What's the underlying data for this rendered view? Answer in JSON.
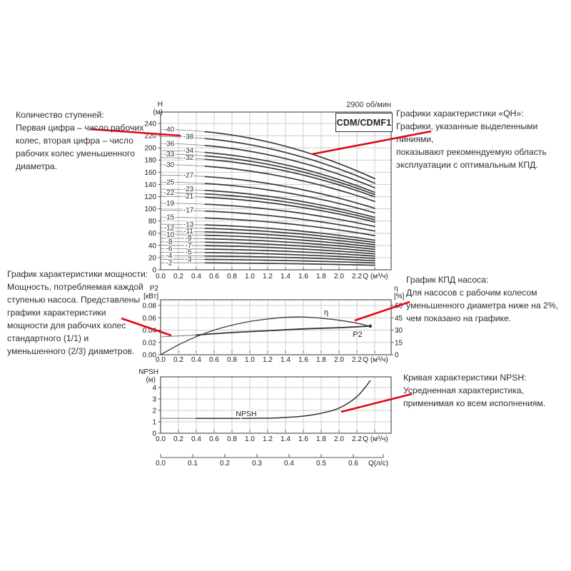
{
  "header": {
    "speed_label": "2900 об/мин",
    "model_label": "CDM/CDMF1"
  },
  "annotations": {
    "stages_block": "Количество ступеней:\nПервая цифра – число рабочих\nколес, вторая цифра – число\nрабочих колес уменьшенного\nдиаметра.",
    "power_block": "График характеристики мощности:\nМощность, потребляемая каждой\nступенью насоса. Представлены\nграфики характеристики\nмощности для рабочих колес\nстандартного (1/1) и\nуменьшенного (2/3) диаметров.",
    "qh_block": "Графики характеристики «QH»:\nГрафики, указанные выделенными линиями,\nпоказывают рекомендуемую область\nэксплуатации с оптимальным КПД.",
    "eff_block": "График КПД насоса:\nДля насосов с рабочим колесом\nуменьшенного диаметра ниже на 2%,\nчем показано на графике.",
    "npsh_block": "Кривая характеристики NPSH:\nУсредненная характеристика,\nприменимая ко всем исполнениям."
  },
  "chart_data": [
    {
      "id": "qh",
      "type": "line",
      "title": "CDM/CDMF1",
      "subtitle": "2900 об/мин",
      "xlabel": "Q (м³/ч)",
      "ylabel_lines": [
        "H",
        "(м)"
      ],
      "x_ticks": [
        "0.0",
        "0.2",
        "0.4",
        "0.6",
        "0.8",
        "1.0",
        "1.2",
        "1.4",
        "1.6",
        "1.8",
        "2.0",
        "2.2"
      ],
      "y_ticks": [
        0,
        20,
        40,
        60,
        80,
        100,
        120,
        140,
        160,
        180,
        200,
        220,
        240
      ],
      "xlim": [
        0,
        2.4
      ],
      "ylim": [
        0,
        258
      ],
      "grid": true,
      "stage_curves": {
        "stages": [
          2,
          3,
          4,
          5,
          6,
          7,
          8,
          9,
          10,
          11,
          12,
          13,
          15,
          17,
          19,
          21,
          22,
          23,
          25,
          27,
          30,
          32,
          33,
          34,
          36,
          38,
          40
        ],
        "label_format": "-{n}",
        "right_column_stages": [
          3,
          5,
          7,
          9,
          11,
          13,
          17,
          21,
          23,
          27,
          32,
          34,
          38
        ],
        "head_per_stage_m": 5.75,
        "droop_fraction_at_qmax": 0.35,
        "q_max": 2.4,
        "bold_recommended_range_q": [
          0.5,
          2.4
        ]
      }
    },
    {
      "id": "power_efficiency",
      "type": "line",
      "xlabel": "Q (м³/ч)",
      "ylabel_left_lines": [
        "P2",
        "[кВт]"
      ],
      "ylabel_right_lines": [
        "η",
        "[%]"
      ],
      "x_ticks": [
        "0.0",
        "0.2",
        "0.4",
        "0.6",
        "0.8",
        "1.0",
        "1.2",
        "1.4",
        "1.6",
        "1.8",
        "2.0",
        "2.2"
      ],
      "y_ticks_left": [
        "0.00",
        "0.02",
        "0.04",
        "0.06",
        "0.08"
      ],
      "y_ticks_right": [
        0,
        15,
        30,
        45,
        60
      ],
      "ylim_left": [
        0,
        0.089
      ],
      "ylim_right": [
        0,
        67
      ],
      "grid": true,
      "series": [
        {
          "name": "P2",
          "axis": "left",
          "q": [
            0,
            0.4,
            0.8,
            1.2,
            1.6,
            2.0,
            2.35
          ],
          "values": [
            0.029,
            0.032,
            0.036,
            0.039,
            0.042,
            0.044,
            0.0465
          ]
        },
        {
          "name": "η",
          "axis": "right",
          "q": [
            0,
            0.2,
            0.4,
            0.6,
            0.8,
            1.0,
            1.2,
            1.4,
            1.6,
            1.8,
            2.0,
            2.2,
            2.35
          ],
          "values": [
            0,
            12,
            22,
            30,
            36,
            40.5,
            43.5,
            45.5,
            46,
            44.5,
            42,
            38.5,
            34.5
          ]
        }
      ]
    },
    {
      "id": "npsh",
      "type": "line",
      "xlabel": "Q (м³/ч)",
      "ylabel_lines": [
        "NPSH",
        "(м)"
      ],
      "x_ticks": [
        "0.0",
        "0.2",
        "0.4",
        "0.6",
        "0.8",
        "1.0",
        "1.2",
        "1.4",
        "1.6",
        "1.8",
        "2.0",
        "2.2"
      ],
      "y_ticks": [
        0,
        1,
        2,
        3,
        4
      ],
      "ylim": [
        0,
        4.94
      ],
      "grid": true,
      "series": [
        {
          "name": "NPSH",
          "q": [
            0,
            0.4,
            0.8,
            1.2,
            1.4,
            1.6,
            1.8,
            2.0,
            2.2,
            2.35
          ],
          "values": [
            1.3,
            1.3,
            1.3,
            1.32,
            1.38,
            1.5,
            1.75,
            2.2,
            3.2,
            4.6
          ]
        }
      ]
    },
    {
      "id": "q_lps_scale",
      "type": "axis-scale",
      "label": "Q(л/с)",
      "ticks": [
        "0.0",
        "0.1",
        "0.2",
        "0.3",
        "0.4",
        "0.5",
        "0.6"
      ]
    }
  ]
}
